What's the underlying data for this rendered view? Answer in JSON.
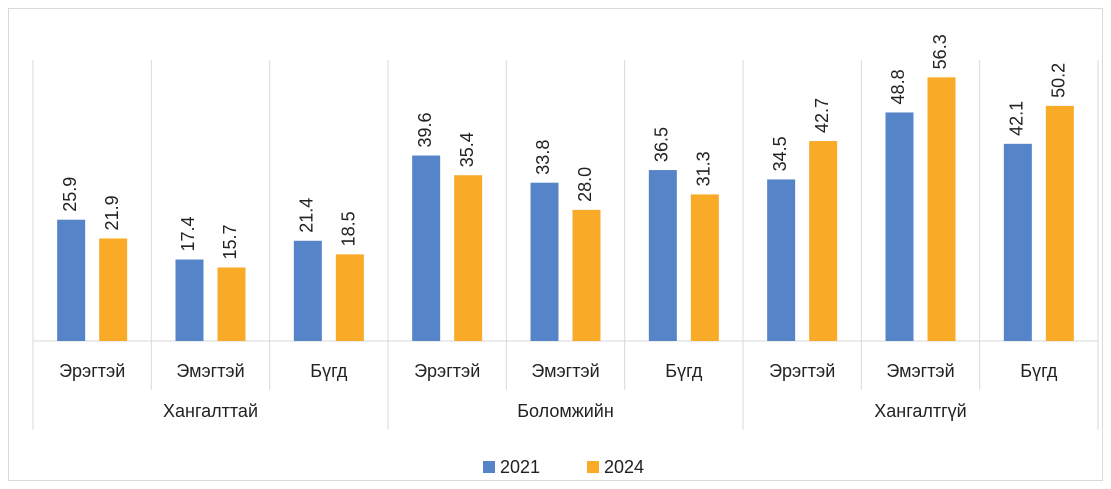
{
  "chart_data": {
    "type": "bar",
    "categories": [
      "Эрэгтэй",
      "Эмэгтэй",
      "Бүгд",
      "Эрэгтэй",
      "Эмэгтэй",
      "Бүгд",
      "Эрэгтэй",
      "Эмэгтэй",
      "Бүгд"
    ],
    "groups": [
      "Хангалттай",
      "Боломжийн",
      "Хангалтгүй"
    ],
    "series": [
      {
        "name": "2021",
        "color": "#5585c8",
        "values": [
          25.9,
          17.4,
          21.4,
          39.6,
          33.8,
          36.5,
          34.5,
          48.8,
          42.1
        ]
      },
      {
        "name": "2024",
        "color": "#f9ab28",
        "values": [
          21.9,
          15.7,
          18.5,
          35.4,
          28,
          31.3,
          42.7,
          56.3,
          50.2
        ],
        "value_labels": [
          "21.9",
          "15.7",
          "18.5",
          "35.4",
          "28.0",
          "31.3",
          "42.7",
          "56.3",
          "50.2"
        ]
      }
    ],
    "ylim": [
      0,
      60
    ],
    "legend": "bottom"
  }
}
